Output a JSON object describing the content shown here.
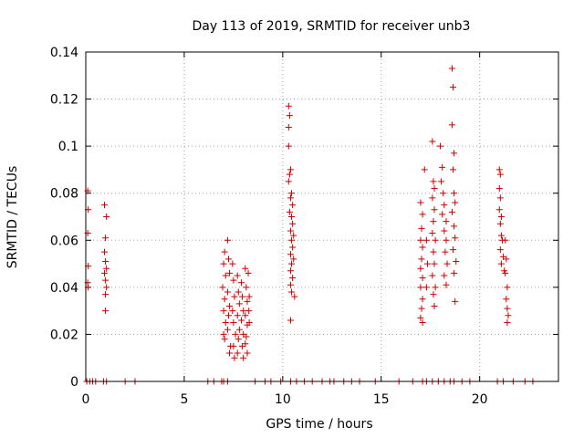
{
  "chart_data": {
    "type": "scatter",
    "title": "Day 113 of 2019, SRMTID for receiver unb3",
    "xlabel": "GPS time / hours",
    "ylabel": "SRMTID / TECUs",
    "xlim": [
      0,
      24
    ],
    "ylim": [
      0,
      0.14
    ],
    "x_ticks": [
      0,
      5,
      10,
      15,
      20
    ],
    "x_tick_labels": [
      "0",
      "5",
      "10",
      "15",
      "20"
    ],
    "y_ticks": [
      0,
      0.02,
      0.04,
      0.06,
      0.08,
      0.1,
      0.12,
      0.14
    ],
    "y_tick_labels": [
      "0",
      "0.02",
      "0.04",
      "0.06",
      "0.08",
      "0.1",
      "0.12",
      "0.14"
    ],
    "grid": true,
    "marker": "plus",
    "colors": {
      "series": "#cc0000",
      "grid": "#a0a0a0",
      "axis": "#000000"
    },
    "series": [
      {
        "name": "SRMTID",
        "points": [
          [
            0.1,
            0.081
          ],
          [
            0.12,
            0.073
          ],
          [
            0.1,
            0.063
          ],
          [
            0.12,
            0.049
          ],
          [
            0.1,
            0.042
          ],
          [
            0.12,
            0.04
          ],
          [
            0.95,
            0.075
          ],
          [
            1.05,
            0.07
          ],
          [
            1.0,
            0.061
          ],
          [
            0.95,
            0.055
          ],
          [
            1.0,
            0.051
          ],
          [
            1.05,
            0.048
          ],
          [
            0.95,
            0.046
          ],
          [
            1.0,
            0.043
          ],
          [
            1.05,
            0.04
          ],
          [
            1.0,
            0.037
          ],
          [
            1.0,
            0.03
          ],
          [
            7.05,
            0.055
          ],
          [
            7.0,
            0.05
          ],
          [
            7.1,
            0.045
          ],
          [
            6.95,
            0.04
          ],
          [
            7.05,
            0.035
          ],
          [
            7.0,
            0.03
          ],
          [
            7.1,
            0.025
          ],
          [
            7.0,
            0.02
          ],
          [
            7.05,
            0.018
          ],
          [
            7.2,
            0.06
          ],
          [
            7.25,
            0.052
          ],
          [
            7.3,
            0.046
          ],
          [
            7.2,
            0.038
          ],
          [
            7.3,
            0.032
          ],
          [
            7.25,
            0.028
          ],
          [
            7.2,
            0.022
          ],
          [
            7.35,
            0.015
          ],
          [
            7.3,
            0.012
          ],
          [
            7.45,
            0.05
          ],
          [
            7.5,
            0.043
          ],
          [
            7.55,
            0.036
          ],
          [
            7.45,
            0.03
          ],
          [
            7.5,
            0.025
          ],
          [
            7.6,
            0.02
          ],
          [
            7.5,
            0.015
          ],
          [
            7.55,
            0.01
          ],
          [
            7.7,
            0.045
          ],
          [
            7.75,
            0.038
          ],
          [
            7.8,
            0.033
          ],
          [
            7.7,
            0.028
          ],
          [
            7.8,
            0.022
          ],
          [
            7.75,
            0.018
          ],
          [
            7.7,
            0.012
          ],
          [
            7.9,
            0.042
          ],
          [
            7.95,
            0.036
          ],
          [
            8.0,
            0.03
          ],
          [
            7.9,
            0.026
          ],
          [
            8.0,
            0.02
          ],
          [
            7.95,
            0.015
          ],
          [
            8.0,
            0.01
          ],
          [
            8.1,
            0.048
          ],
          [
            8.15,
            0.04
          ],
          [
            8.2,
            0.034
          ],
          [
            8.1,
            0.028
          ],
          [
            8.2,
            0.024
          ],
          [
            8.15,
            0.019
          ],
          [
            8.1,
            0.016
          ],
          [
            8.2,
            0.012
          ],
          [
            8.25,
            0.046
          ],
          [
            8.3,
            0.036
          ],
          [
            8.28,
            0.03
          ],
          [
            8.3,
            0.025
          ],
          [
            10.3,
            0.117
          ],
          [
            10.35,
            0.113
          ],
          [
            10.3,
            0.108
          ],
          [
            10.3,
            0.1
          ],
          [
            10.4,
            0.09
          ],
          [
            10.35,
            0.088
          ],
          [
            10.3,
            0.085
          ],
          [
            10.45,
            0.08
          ],
          [
            10.4,
            0.078
          ],
          [
            10.5,
            0.075
          ],
          [
            10.35,
            0.072
          ],
          [
            10.45,
            0.07
          ],
          [
            10.5,
            0.067
          ],
          [
            10.4,
            0.064
          ],
          [
            10.55,
            0.062
          ],
          [
            10.45,
            0.06
          ],
          [
            10.5,
            0.057
          ],
          [
            10.4,
            0.054
          ],
          [
            10.55,
            0.052
          ],
          [
            10.45,
            0.05
          ],
          [
            10.4,
            0.047
          ],
          [
            10.5,
            0.044
          ],
          [
            10.4,
            0.041
          ],
          [
            10.45,
            0.038
          ],
          [
            10.6,
            0.036
          ],
          [
            10.4,
            0.026
          ],
          [
            17.0,
            0.076
          ],
          [
            17.1,
            0.071
          ],
          [
            17.05,
            0.065
          ],
          [
            17.0,
            0.06
          ],
          [
            17.1,
            0.057
          ],
          [
            17.05,
            0.052
          ],
          [
            17.0,
            0.048
          ],
          [
            17.1,
            0.044
          ],
          [
            17.0,
            0.04
          ],
          [
            17.1,
            0.035
          ],
          [
            17.05,
            0.031
          ],
          [
            17.0,
            0.027
          ],
          [
            17.1,
            0.025
          ],
          [
            17.2,
            0.09
          ],
          [
            17.3,
            0.06
          ],
          [
            17.35,
            0.05
          ],
          [
            17.3,
            0.04
          ],
          [
            17.6,
            0.102
          ],
          [
            17.65,
            0.085
          ],
          [
            17.7,
            0.082
          ],
          [
            17.6,
            0.078
          ],
          [
            17.7,
            0.073
          ],
          [
            17.65,
            0.068
          ],
          [
            17.6,
            0.063
          ],
          [
            17.75,
            0.06
          ],
          [
            17.65,
            0.055
          ],
          [
            17.7,
            0.05
          ],
          [
            17.6,
            0.045
          ],
          [
            17.75,
            0.04
          ],
          [
            17.65,
            0.037
          ],
          [
            17.7,
            0.032
          ],
          [
            18.0,
            0.1
          ],
          [
            18.1,
            0.091
          ],
          [
            18.05,
            0.085
          ],
          [
            18.15,
            0.08
          ],
          [
            18.2,
            0.075
          ],
          [
            18.1,
            0.071
          ],
          [
            18.3,
            0.068
          ],
          [
            18.2,
            0.064
          ],
          [
            18.3,
            0.06
          ],
          [
            18.25,
            0.055
          ],
          [
            18.35,
            0.05
          ],
          [
            18.2,
            0.045
          ],
          [
            18.3,
            0.041
          ],
          [
            18.6,
            0.133
          ],
          [
            18.65,
            0.125
          ],
          [
            18.6,
            0.109
          ],
          [
            18.7,
            0.097
          ],
          [
            18.65,
            0.09
          ],
          [
            18.7,
            0.08
          ],
          [
            18.75,
            0.076
          ],
          [
            18.6,
            0.072
          ],
          [
            18.7,
            0.066
          ],
          [
            18.75,
            0.061
          ],
          [
            18.65,
            0.056
          ],
          [
            18.8,
            0.051
          ],
          [
            18.7,
            0.046
          ],
          [
            18.75,
            0.034
          ],
          [
            21.0,
            0.09
          ],
          [
            21.05,
            0.088
          ],
          [
            21.0,
            0.082
          ],
          [
            21.05,
            0.078
          ],
          [
            21.0,
            0.073
          ],
          [
            21.1,
            0.07
          ],
          [
            21.05,
            0.067
          ],
          [
            21.1,
            0.062
          ],
          [
            21.15,
            0.06
          ],
          [
            21.05,
            0.056
          ],
          [
            21.2,
            0.053
          ],
          [
            21.1,
            0.05
          ],
          [
            21.25,
            0.047
          ],
          [
            21.3,
            0.06
          ],
          [
            21.35,
            0.052
          ],
          [
            21.3,
            0.046
          ],
          [
            21.4,
            0.04
          ],
          [
            21.35,
            0.035
          ],
          [
            21.4,
            0.031
          ],
          [
            21.45,
            0.028
          ],
          [
            21.4,
            0.025
          ],
          [
            0.05,
            0.0
          ],
          [
            0.2,
            0.0
          ],
          [
            0.35,
            0.0
          ],
          [
            0.5,
            0.0
          ],
          [
            0.9,
            0.0
          ],
          [
            1.05,
            0.0
          ],
          [
            2.0,
            0.0
          ],
          [
            2.5,
            0.0
          ],
          [
            6.2,
            0.0
          ],
          [
            6.5,
            0.0
          ],
          [
            6.9,
            0.0
          ],
          [
            7.0,
            0.0
          ],
          [
            7.2,
            0.0
          ],
          [
            8.6,
            0.0
          ],
          [
            9.1,
            0.0
          ],
          [
            9.4,
            0.0
          ],
          [
            9.9,
            0.0
          ],
          [
            10.4,
            0.0
          ],
          [
            10.7,
            0.0
          ],
          [
            11.1,
            0.0
          ],
          [
            11.5,
            0.0
          ],
          [
            12.0,
            0.0
          ],
          [
            12.4,
            0.0
          ],
          [
            12.6,
            0.0
          ],
          [
            13.1,
            0.0
          ],
          [
            13.5,
            0.0
          ],
          [
            13.9,
            0.0
          ],
          [
            14.7,
            0.0
          ],
          [
            15.9,
            0.0
          ],
          [
            16.6,
            0.0
          ],
          [
            17.1,
            0.0
          ],
          [
            17.3,
            0.0
          ],
          [
            17.6,
            0.0
          ],
          [
            17.9,
            0.0
          ],
          [
            18.2,
            0.0
          ],
          [
            18.5,
            0.0
          ],
          [
            18.7,
            0.0
          ],
          [
            19.1,
            0.0
          ],
          [
            19.5,
            0.0
          ],
          [
            20.9,
            0.0
          ],
          [
            21.2,
            0.0
          ],
          [
            21.7,
            0.0
          ],
          [
            22.3,
            0.0
          ],
          [
            22.7,
            0.0
          ]
        ]
      }
    ]
  }
}
